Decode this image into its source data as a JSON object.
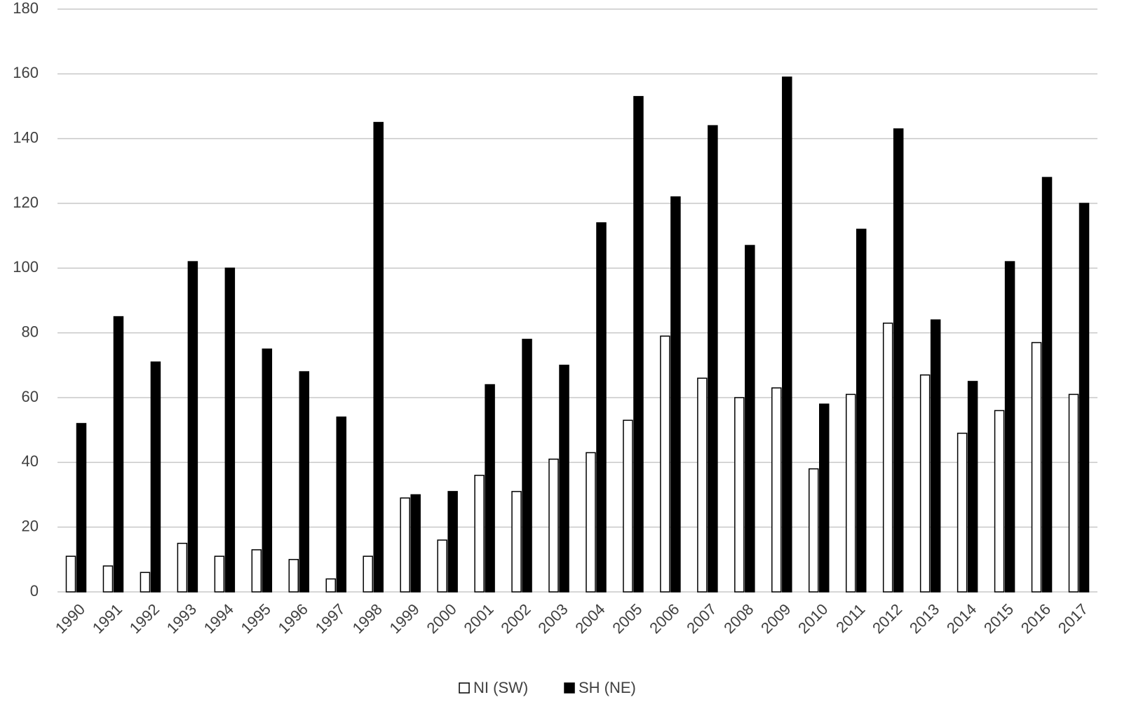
{
  "chart_data": {
    "type": "bar",
    "categories": [
      "1990",
      "1991",
      "1992",
      "1993",
      "1994",
      "1995",
      "1996",
      "1997",
      "1998",
      "1999",
      "2000",
      "2001",
      "2002",
      "2003",
      "2004",
      "2005",
      "2006",
      "2007",
      "2008",
      "2009",
      "2010",
      "2011",
      "2012",
      "2013",
      "2014",
      "2015",
      "2016",
      "2017"
    ],
    "series": [
      {
        "name": "NI (SW)",
        "color": "#ffffff",
        "values": [
          11,
          8,
          6,
          15,
          11,
          13,
          10,
          4,
          11,
          29,
          16,
          36,
          31,
          41,
          43,
          53,
          79,
          66,
          60,
          63,
          38,
          61,
          83,
          67,
          49,
          56,
          77,
          61
        ]
      },
      {
        "name": "SH (NE)",
        "color": "#000000",
        "values": [
          52,
          85,
          71,
          102,
          100,
          75,
          68,
          54,
          145,
          30,
          31,
          64,
          78,
          70,
          114,
          153,
          122,
          144,
          107,
          159,
          58,
          112,
          143,
          84,
          65,
          102,
          128,
          120
        ]
      }
    ],
    "ylim": [
      0,
      180
    ],
    "yticks": [
      0,
      20,
      40,
      60,
      80,
      100,
      120,
      140,
      160,
      180
    ],
    "grid": true,
    "legend": "bottom"
  }
}
